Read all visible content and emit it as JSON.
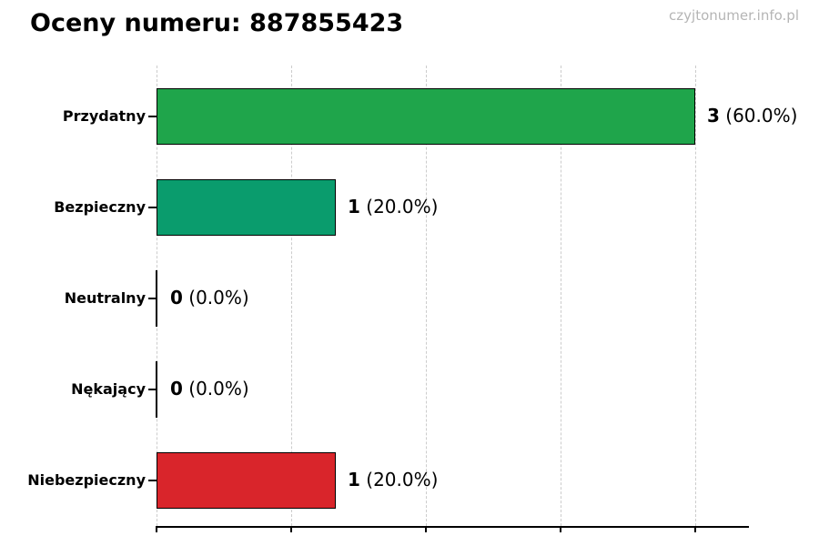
{
  "page": {
    "title": "Oceny numeru: 887855423",
    "watermark": "czyjtonumer.info.pl"
  },
  "chart_data": {
    "type": "bar",
    "orientation": "horizontal",
    "title": "Oceny numeru: 887855423",
    "categories": [
      "Przydatny",
      "Bezpieczny",
      "Neutralny",
      "Nękający",
      "Niebezpieczny"
    ],
    "values": [
      3,
      1,
      0,
      0,
      1
    ],
    "count_labels": [
      "3",
      "1",
      "0",
      "0",
      "1"
    ],
    "percent_labels": [
      "(60.0%)",
      "(20.0%)",
      "(0.0%)",
      "(0.0%)",
      "(20.0%)"
    ],
    "bar_colors": [
      "#1fa54b",
      "#0a9c6d",
      null,
      null,
      "#d9252b"
    ],
    "bar_edge_color": "#000000",
    "xlim": [
      0,
      3.3
    ],
    "gridlines_at": [
      0,
      0.75,
      1.5,
      2.25,
      3.0
    ],
    "grid": true,
    "tick_labels_shown": false,
    "legend": "none"
  },
  "colors": {
    "background": "#ffffff",
    "grid": "#cccccc",
    "axis": "#000000",
    "text": "#000000",
    "watermark": "#b5b5b5"
  }
}
